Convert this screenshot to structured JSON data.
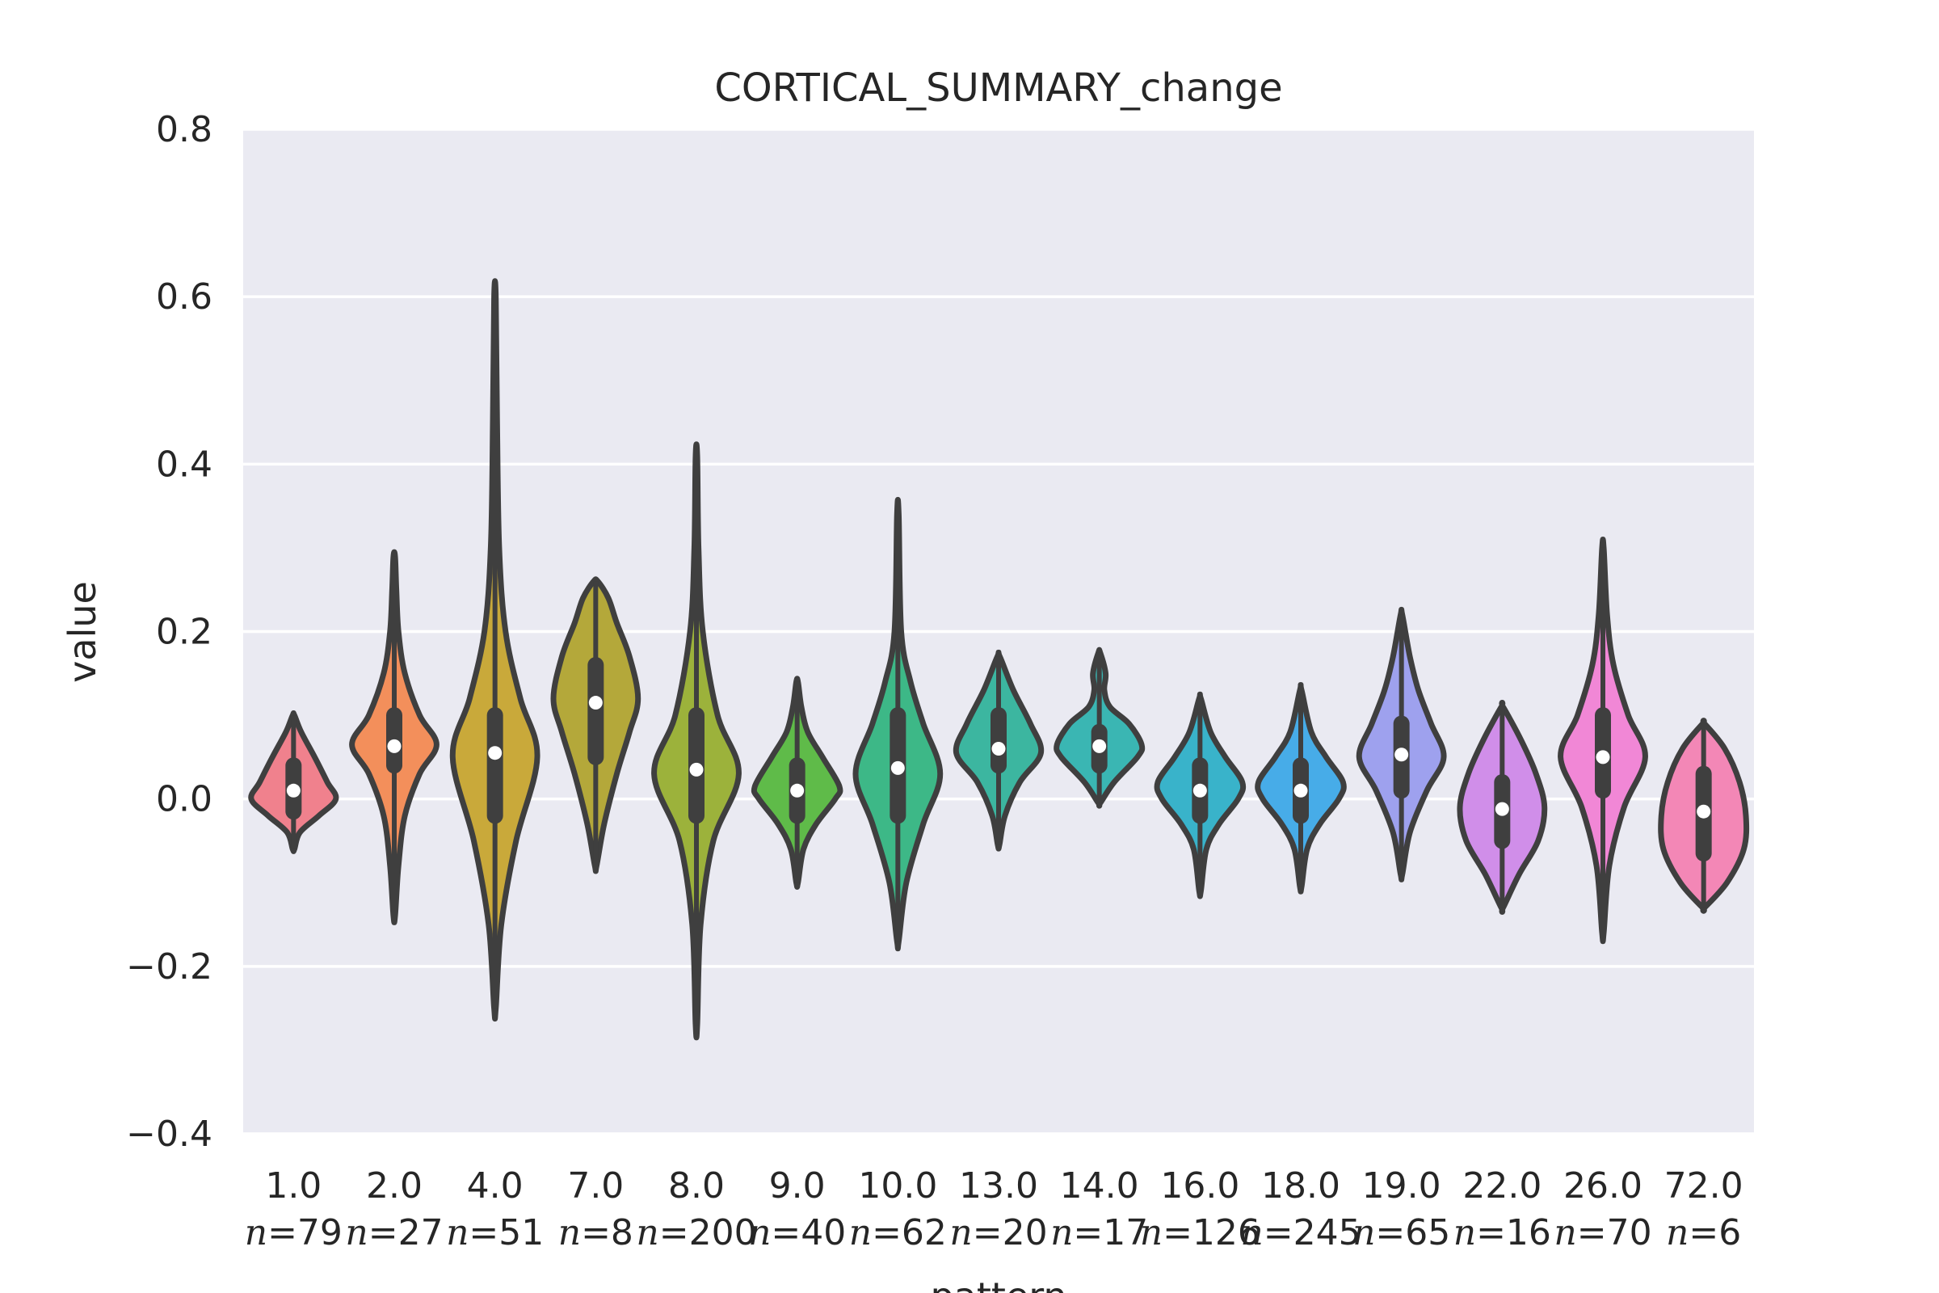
{
  "chart_data": {
    "type": "violin",
    "title": "CORTICAL_SUMMARY_change",
    "xlabel": "pattern",
    "ylabel": "value",
    "ylim": [
      -0.4,
      0.8
    ],
    "yticks": [
      -0.4,
      -0.2,
      0.0,
      0.2,
      0.4,
      0.6,
      0.8
    ],
    "ytick_labels": [
      "−0.4",
      "−0.2",
      "0.0",
      "0.2",
      "0.4",
      "0.6",
      "0.8"
    ],
    "grid": true,
    "n_prefix": "n",
    "categories": [
      "1.0",
      "2.0",
      "4.0",
      "7.0",
      "8.0",
      "9.0",
      "10.0",
      "13.0",
      "14.0",
      "16.0",
      "18.0",
      "19.0",
      "22.0",
      "26.0",
      "72.0"
    ],
    "n_labels": [
      "=79",
      "=27",
      "=51",
      "=8",
      "=200",
      "=40",
      "=62",
      "=20",
      "=17",
      "=126",
      "=245",
      "=65",
      "=16",
      "=70",
      "=6"
    ],
    "colors": [
      "#f0818d",
      "#f38f5b",
      "#c9a93a",
      "#b4a83a",
      "#9cb23b",
      "#5fbb49",
      "#3db887",
      "#3cb6a0",
      "#3ab6b3",
      "#39b3ca",
      "#47ace8",
      "#9ea1ee",
      "#d08ee9",
      "#f187d6",
      "#f387b6"
    ],
    "violins": [
      {
        "min": -0.06,
        "max": 0.1,
        "median": 0.01,
        "q1": -0.015,
        "q3": 0.04,
        "widths": [
          [
            -0.06,
            0.02
          ],
          [
            -0.04,
            0.15
          ],
          [
            -0.02,
            0.6
          ],
          [
            0.0,
            1.0
          ],
          [
            0.02,
            0.8
          ],
          [
            0.05,
            0.5
          ],
          [
            0.08,
            0.18
          ],
          [
            0.1,
            0.02
          ]
        ]
      },
      {
        "min": -0.14,
        "max": 0.29,
        "median": 0.063,
        "q1": 0.04,
        "q3": 0.1,
        "widths": [
          [
            -0.14,
            0.02
          ],
          [
            -0.08,
            0.1
          ],
          [
            -0.02,
            0.25
          ],
          [
            0.03,
            0.6
          ],
          [
            0.065,
            1.0
          ],
          [
            0.1,
            0.6
          ],
          [
            0.15,
            0.25
          ],
          [
            0.2,
            0.1
          ],
          [
            0.25,
            0.05
          ],
          [
            0.29,
            0.02
          ]
        ]
      },
      {
        "min": -0.25,
        "max": 0.6,
        "median": 0.055,
        "q1": -0.02,
        "q3": 0.1,
        "widths": [
          [
            -0.25,
            0.02
          ],
          [
            -0.15,
            0.15
          ],
          [
            -0.05,
            0.5
          ],
          [
            0.05,
            1.0
          ],
          [
            0.12,
            0.6
          ],
          [
            0.2,
            0.25
          ],
          [
            0.3,
            0.1
          ],
          [
            0.45,
            0.05
          ],
          [
            0.6,
            0.02
          ]
        ]
      },
      {
        "min": -0.08,
        "max": 0.26,
        "median": 0.115,
        "q1": 0.05,
        "q3": 0.16,
        "widths": [
          [
            -0.08,
            0.02
          ],
          [
            -0.03,
            0.2
          ],
          [
            0.03,
            0.5
          ],
          [
            0.08,
            0.8
          ],
          [
            0.12,
            1.0
          ],
          [
            0.17,
            0.8
          ],
          [
            0.21,
            0.5
          ],
          [
            0.24,
            0.3
          ],
          [
            0.26,
            0.05
          ]
        ]
      },
      {
        "min": -0.27,
        "max": 0.41,
        "median": 0.035,
        "q1": -0.02,
        "q3": 0.1,
        "widths": [
          [
            -0.27,
            0.02
          ],
          [
            -0.15,
            0.1
          ],
          [
            -0.05,
            0.4
          ],
          [
            0.03,
            1.0
          ],
          [
            0.1,
            0.5
          ],
          [
            0.2,
            0.15
          ],
          [
            0.3,
            0.05
          ],
          [
            0.41,
            0.02
          ]
        ]
      },
      {
        "min": -0.1,
        "max": 0.14,
        "median": 0.01,
        "q1": -0.02,
        "q3": 0.04,
        "widths": [
          [
            -0.1,
            0.02
          ],
          [
            -0.06,
            0.15
          ],
          [
            -0.03,
            0.45
          ],
          [
            0.0,
            0.9
          ],
          [
            0.015,
            1.0
          ],
          [
            0.05,
            0.6
          ],
          [
            0.08,
            0.25
          ],
          [
            0.11,
            0.1
          ],
          [
            0.14,
            0.02
          ]
        ]
      },
      {
        "min": -0.17,
        "max": 0.34,
        "median": 0.037,
        "q1": -0.02,
        "q3": 0.1,
        "widths": [
          [
            -0.17,
            0.02
          ],
          [
            -0.1,
            0.2
          ],
          [
            -0.03,
            0.6
          ],
          [
            0.03,
            1.0
          ],
          [
            0.09,
            0.6
          ],
          [
            0.14,
            0.3
          ],
          [
            0.2,
            0.08
          ],
          [
            0.34,
            0.02
          ]
        ]
      },
      {
        "min": -0.055,
        "max": 0.17,
        "median": 0.06,
        "q1": 0.04,
        "q3": 0.1,
        "widths": [
          [
            -0.055,
            0.02
          ],
          [
            -0.02,
            0.15
          ],
          [
            0.02,
            0.5
          ],
          [
            0.055,
            1.0
          ],
          [
            0.09,
            0.75
          ],
          [
            0.13,
            0.35
          ],
          [
            0.17,
            0.03
          ]
        ]
      },
      {
        "min": -0.005,
        "max": 0.175,
        "median": 0.063,
        "q1": 0.04,
        "q3": 0.08,
        "widths": [
          [
            -0.005,
            0.02
          ],
          [
            0.02,
            0.35
          ],
          [
            0.05,
            0.9
          ],
          [
            0.065,
            1.0
          ],
          [
            0.09,
            0.7
          ],
          [
            0.11,
            0.25
          ],
          [
            0.13,
            0.12
          ],
          [
            0.15,
            0.15
          ],
          [
            0.175,
            0.02
          ]
        ]
      },
      {
        "min": -0.11,
        "max": 0.12,
        "median": 0.01,
        "q1": -0.02,
        "q3": 0.04,
        "widths": [
          [
            -0.11,
            0.02
          ],
          [
            -0.06,
            0.15
          ],
          [
            -0.03,
            0.45
          ],
          [
            0.0,
            0.9
          ],
          [
            0.02,
            1.0
          ],
          [
            0.05,
            0.6
          ],
          [
            0.08,
            0.25
          ],
          [
            0.12,
            0.02
          ]
        ]
      },
      {
        "min": -0.105,
        "max": 0.13,
        "median": 0.01,
        "q1": -0.02,
        "q3": 0.04,
        "widths": [
          [
            -0.105,
            0.02
          ],
          [
            -0.06,
            0.15
          ],
          [
            -0.03,
            0.45
          ],
          [
            0.0,
            0.9
          ],
          [
            0.02,
            1.0
          ],
          [
            0.05,
            0.6
          ],
          [
            0.08,
            0.25
          ],
          [
            0.13,
            0.02
          ]
        ]
      },
      {
        "min": -0.09,
        "max": 0.22,
        "median": 0.053,
        "q1": 0.01,
        "q3": 0.09,
        "widths": [
          [
            -0.09,
            0.02
          ],
          [
            -0.04,
            0.2
          ],
          [
            0.01,
            0.6
          ],
          [
            0.05,
            1.0
          ],
          [
            0.09,
            0.7
          ],
          [
            0.13,
            0.4
          ],
          [
            0.17,
            0.2
          ],
          [
            0.22,
            0.02
          ]
        ]
      },
      {
        "min": -0.13,
        "max": 0.11,
        "median": -0.012,
        "q1": -0.05,
        "q3": 0.02,
        "widths": [
          [
            -0.13,
            0.02
          ],
          [
            -0.09,
            0.4
          ],
          [
            -0.05,
            0.85
          ],
          [
            -0.01,
            1.0
          ],
          [
            0.03,
            0.8
          ],
          [
            0.07,
            0.45
          ],
          [
            0.11,
            0.02
          ]
        ]
      },
      {
        "min": -0.16,
        "max": 0.3,
        "median": 0.05,
        "q1": 0.01,
        "q3": 0.1,
        "widths": [
          [
            -0.16,
            0.02
          ],
          [
            -0.08,
            0.15
          ],
          [
            -0.01,
            0.5
          ],
          [
            0.05,
            1.0
          ],
          [
            0.1,
            0.6
          ],
          [
            0.16,
            0.25
          ],
          [
            0.22,
            0.1
          ],
          [
            0.3,
            0.02
          ]
        ]
      },
      {
        "min": -0.13,
        "max": 0.09,
        "median": -0.015,
        "q1": -0.065,
        "q3": 0.03,
        "widths": [
          [
            -0.13,
            0.02
          ],
          [
            -0.1,
            0.55
          ],
          [
            -0.06,
            0.95
          ],
          [
            -0.02,
            1.0
          ],
          [
            0.02,
            0.85
          ],
          [
            0.06,
            0.5
          ],
          [
            0.09,
            0.02
          ]
        ]
      }
    ]
  }
}
